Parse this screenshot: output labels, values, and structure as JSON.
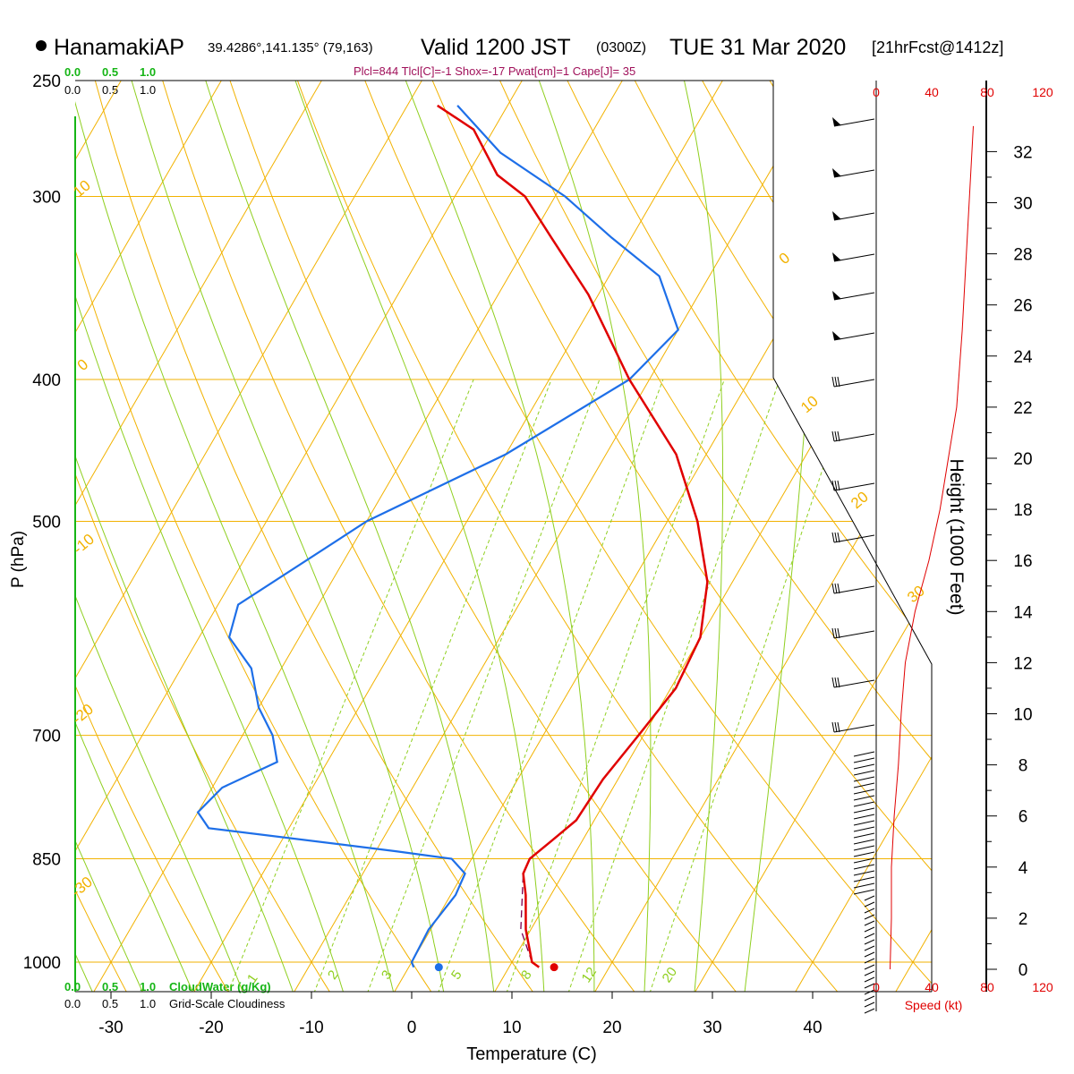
{
  "header": {
    "station": "HanamakiAP",
    "coords": "39.4286°,141.135° (79,163)",
    "valid": "Valid 1200 JST",
    "utc": "(0300Z)",
    "date": "TUE 31 Mar 2020",
    "forecast": "[21hrFcst@1412z]",
    "params": "Plcl=844 Tlcl[C]=-1 Shox=-17 Pwat[cm]=1 Cape[J]= 35"
  },
  "colors": {
    "isobar": "#f2b200",
    "isotherm": "#f2b200",
    "dry_adiabat": "#f2b200",
    "moist_adiabat": "#8fcf1f",
    "mixing_ratio": "#8fcf1f",
    "temperature": "#e00000",
    "dewpoint": "#1e6fe8",
    "parcel": "#7a0050",
    "cloud": "#16b516",
    "params": "#a0105a",
    "wind_speed": "#e00000"
  },
  "left_scale": {
    "cloud_top": [
      "0.0",
      "0.5",
      "1.0"
    ],
    "cloudiness_top": [
      "0.0",
      "0.5",
      "1.0"
    ],
    "cloud_bottom": [
      "0.0",
      "0.5",
      "1.0"
    ],
    "cloudiness_bottom": [
      "0.0",
      "0.5",
      "1.0"
    ],
    "cloud_water_label": "CloudWater (g/Kg)",
    "cloudiness_label": "Grid-Scale Cloudiness"
  },
  "speed_scale": {
    "ticks": [
      "0",
      "40",
      "80",
      "120"
    ],
    "label": "Speed (kt)"
  },
  "chart_data": {
    "type": "skew-t",
    "xlabel": "Temperature (C)",
    "ylabel": "P (hPa)",
    "y2label": "Height (1000 Feet)",
    "x_ticks": [
      -30,
      -20,
      -10,
      0,
      10,
      20,
      30,
      40
    ],
    "pressure_ticks": [
      250,
      300,
      400,
      500,
      700,
      850,
      1000
    ],
    "height_ticks": [
      0,
      2,
      4,
      6,
      8,
      10,
      12,
      14,
      16,
      18,
      20,
      22,
      24,
      26,
      28,
      30,
      32
    ],
    "xlim": [
      -33,
      48
    ],
    "plim": [
      1030,
      250
    ],
    "dry_adiabat_labels": [
      "10",
      "0",
      "-10",
      "-20",
      "-30",
      "0",
      "10",
      "20",
      "30"
    ],
    "mixing_ratio_labels": [
      "1",
      "2",
      "3",
      "5",
      "8",
      "12",
      "20"
    ],
    "series": [
      {
        "name": "temperature",
        "x_c": [
          13.0,
          12.0,
          9.5,
          7.5,
          6.0,
          5.8,
          7.0,
          8.2,
          8.5,
          9.5,
          10.5,
          10.0,
          7.5,
          3.0,
          -3.0,
          -12.0,
          -21.0,
          -28.0,
          -33.0,
          -37.0,
          -42.0,
          -47.0
        ],
        "p_hpa": [
          1008,
          1000,
          950,
          900,
          870,
          850,
          825,
          800,
          750,
          700,
          650,
          600,
          550,
          500,
          450,
          400,
          350,
          320,
          300,
          290,
          270,
          260
        ]
      },
      {
        "name": "dewpoint",
        "x_c": [
          0.5,
          0.0,
          -0.2,
          0.5,
          0.2,
          -2.0,
          -8.0,
          -28.0,
          -30.0,
          -29.0,
          -25.0,
          -27.0,
          -30.0,
          -33.0,
          -37.0,
          -38.0,
          -30.0,
          -20.0,
          -12.0,
          -10.0,
          -15.0,
          -22.0,
          -29.0,
          -38.0,
          -45.0
        ],
        "p_hpa": [
          1008,
          1000,
          950,
          900,
          870,
          850,
          840,
          810,
          790,
          760,
          730,
          700,
          670,
          630,
          600,
          570,
          500,
          450,
          400,
          370,
          340,
          320,
          300,
          280,
          260
        ]
      },
      {
        "name": "parcel",
        "x_c": [
          12.0,
          9.0,
          6.0
        ],
        "p_hpa": [
          1000,
          950,
          870
        ]
      },
      {
        "name": "surface",
        "x_c": [
          14.5,
          3.0
        ],
        "p_hpa": [
          1008,
          1008
        ]
      },
      {
        "name": "wind_speed_kt",
        "speed_kt": [
          10,
          11,
          11,
          13,
          16,
          18,
          21,
          28,
          38,
          46,
          52,
          58,
          62,
          66,
          70
        ],
        "height_kft": [
          0,
          2,
          4,
          6,
          8,
          10,
          12,
          14,
          16,
          18,
          20,
          22,
          25,
          29,
          33
        ]
      }
    ]
  }
}
